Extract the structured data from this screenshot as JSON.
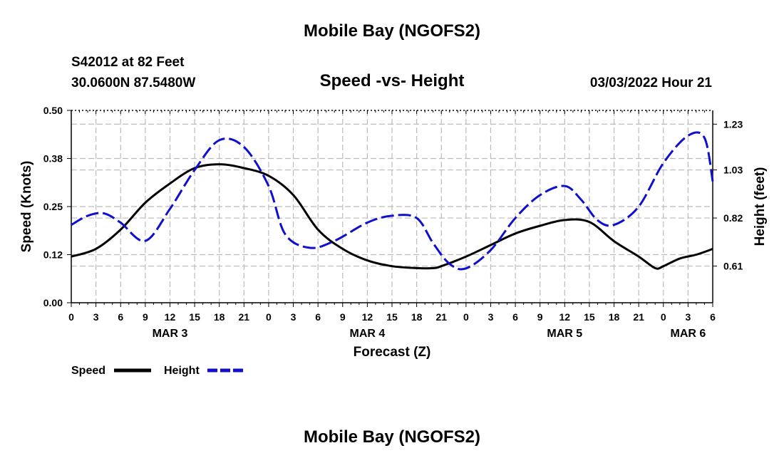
{
  "header": {
    "title_top": "Mobile Bay (NGOFS2)",
    "station": "S42012 at 82 Feet",
    "coords": "30.0600N  87.5480W",
    "datetime": "03/03/2022 Hour 21",
    "title_bottom": "Mobile Bay (NGOFS2)"
  },
  "chart_data": {
    "type": "line",
    "title": "Speed -vs- Height",
    "xlabel": "Forecast (Z)",
    "ylabel_left": "Speed (Knots)",
    "ylabel_right": "Height (feet)",
    "x_hours_from_start": {
      "start_label": "MAR 3 00Z",
      "range": [
        0,
        78
      ]
    },
    "x_tick_labels": [
      "0",
      "3",
      "6",
      "9",
      "12",
      "15",
      "18",
      "21",
      "0",
      "3",
      "6",
      "9",
      "12",
      "15",
      "18",
      "21",
      "0",
      "3",
      "6",
      "9",
      "12",
      "15",
      "18",
      "21",
      "0",
      "3",
      "6"
    ],
    "date_labels": [
      {
        "label": "MAR 3",
        "at_hour": 12
      },
      {
        "label": "MAR 4",
        "at_hour": 36
      },
      {
        "label": "MAR 5",
        "at_hour": 60
      },
      {
        "label": "MAR 6",
        "at_hour": 75
      }
    ],
    "ylim_left": [
      0,
      0.5
    ],
    "yticks_left": [
      "0.00",
      "0.12",
      "0.25",
      "0.38",
      "0.50"
    ],
    "ylim_right": [
      0.45,
      1.29
    ],
    "yticks_right": [
      {
        "label": "0.61",
        "value": 0.61
      },
      {
        "label": "0.82",
        "value": 0.82
      },
      {
        "label": "1.03",
        "value": 1.03
      },
      {
        "label": "1.23",
        "value": 1.23
      }
    ],
    "grid": true,
    "legend_position": "bottom-left",
    "series": [
      {
        "name": "Speed",
        "axis": "left",
        "color": "#000000",
        "dash": "solid",
        "points": [
          [
            0,
            0.12
          ],
          [
            3,
            0.14
          ],
          [
            6,
            0.19
          ],
          [
            9,
            0.26
          ],
          [
            12,
            0.31
          ],
          [
            15,
            0.35
          ],
          [
            18,
            0.36
          ],
          [
            21,
            0.35
          ],
          [
            24,
            0.33
          ],
          [
            27,
            0.28
          ],
          [
            30,
            0.19
          ],
          [
            33,
            0.14
          ],
          [
            36,
            0.11
          ],
          [
            39,
            0.095
          ],
          [
            42,
            0.09
          ],
          [
            44,
            0.09
          ],
          [
            45,
            0.095
          ],
          [
            48,
            0.12
          ],
          [
            51,
            0.15
          ],
          [
            54,
            0.18
          ],
          [
            57,
            0.2
          ],
          [
            60,
            0.215
          ],
          [
            63,
            0.21
          ],
          [
            66,
            0.16
          ],
          [
            69,
            0.12
          ],
          [
            71,
            0.09
          ],
          [
            72,
            0.095
          ],
          [
            74,
            0.115
          ],
          [
            76,
            0.125
          ],
          [
            78,
            0.14
          ]
        ]
      },
      {
        "name": "Height",
        "axis": "right",
        "color": "#1010cc",
        "dash": "dashed",
        "points": [
          [
            0,
            0.79
          ],
          [
            2,
            0.83
          ],
          [
            4,
            0.84
          ],
          [
            6,
            0.8
          ],
          [
            9,
            0.72
          ],
          [
            12,
            0.86
          ],
          [
            15,
            1.03
          ],
          [
            18,
            1.16
          ],
          [
            21,
            1.13
          ],
          [
            24,
            0.96
          ],
          [
            26,
            0.75
          ],
          [
            29,
            0.69
          ],
          [
            32,
            0.72
          ],
          [
            36,
            0.8
          ],
          [
            39,
            0.83
          ],
          [
            42,
            0.82
          ],
          [
            44,
            0.71
          ],
          [
            46,
            0.62
          ],
          [
            48,
            0.6
          ],
          [
            51,
            0.68
          ],
          [
            54,
            0.82
          ],
          [
            57,
            0.92
          ],
          [
            60,
            0.96
          ],
          [
            62,
            0.9
          ],
          [
            64,
            0.81
          ],
          [
            66,
            0.79
          ],
          [
            69,
            0.87
          ],
          [
            72,
            1.06
          ],
          [
            75,
            1.18
          ],
          [
            77,
            1.17
          ],
          [
            78,
            0.98
          ]
        ]
      }
    ]
  },
  "legend": {
    "speed_label": "Speed",
    "height_label": "Height"
  }
}
